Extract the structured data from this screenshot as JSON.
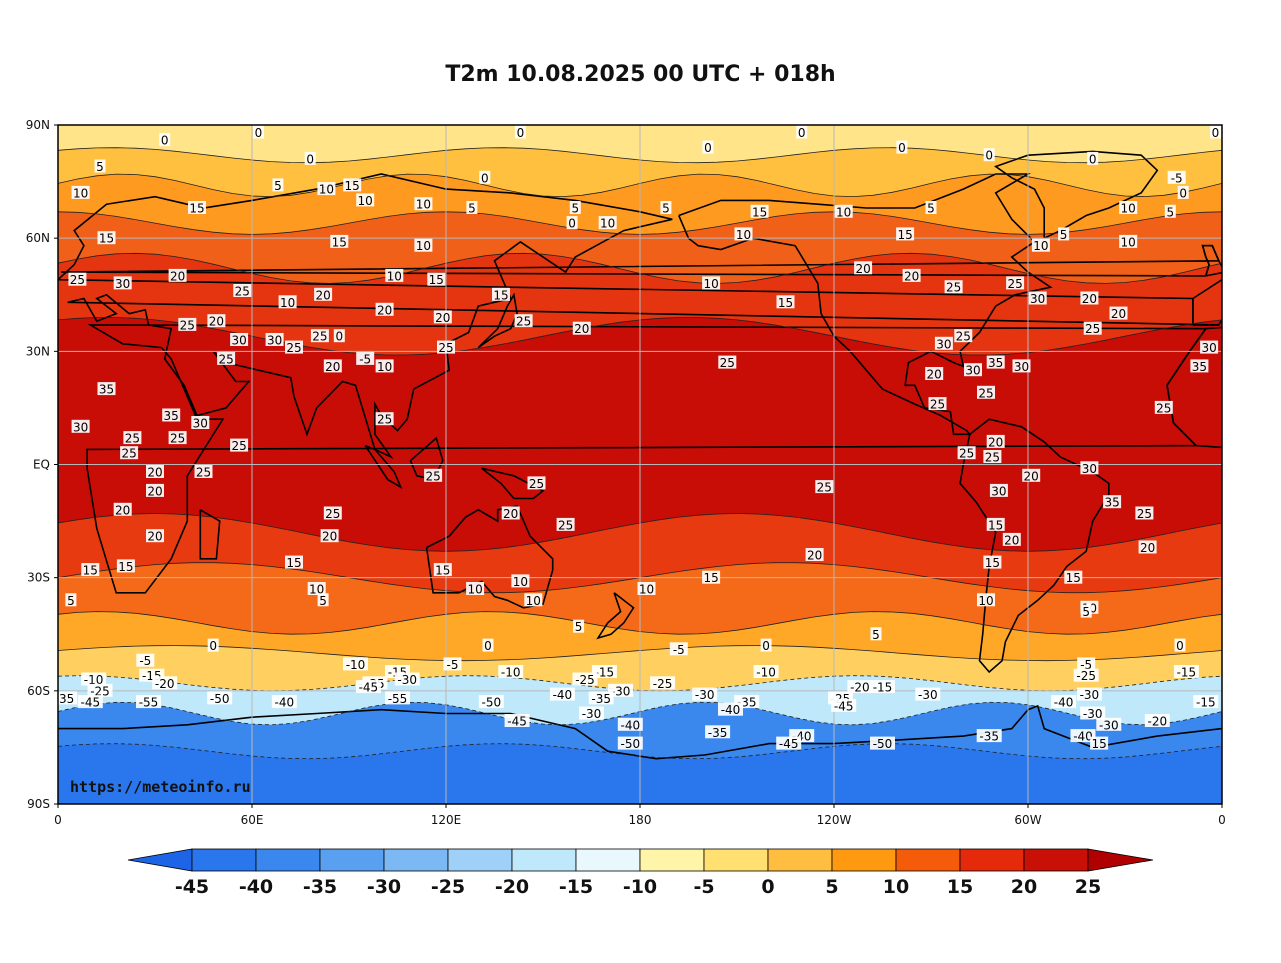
{
  "title": "T2m 10.08.2025 00 UTC + 018h",
  "watermark": "https://meteoinfo.ru",
  "axes": {
    "lat_labels": [
      "90N",
      "60N",
      "30N",
      "EQ",
      "30S",
      "60S",
      "90S"
    ],
    "lon_labels": [
      "0",
      "60E",
      "120E",
      "180",
      "120W",
      "60W",
      "0"
    ]
  },
  "colorbar": {
    "levels": [
      "-45",
      "-40",
      "-35",
      "-30",
      "-25",
      "-20",
      "-15",
      "-10",
      "-5",
      "0",
      "5",
      "10",
      "15",
      "20",
      "25"
    ],
    "colors": [
      "#1e64e6",
      "#2a76ec",
      "#3a88ee",
      "#5aa0f0",
      "#7cb8f4",
      "#9ed0f8",
      "#bfe8fa",
      "#e8f8fc",
      "#fff5a8",
      "#ffe070",
      "#ffbe40",
      "#ff9a10",
      "#f45c0a",
      "#e42a0a",
      "#c81006",
      "#b00000"
    ]
  },
  "map": {
    "band_colors": {
      "north_polar": "#ffe48a",
      "north_subpolar": "#ffc040",
      "north_high": "#ff9a20",
      "north_mid": "#f06018",
      "north_temperate": "#e43410",
      "tropics": "#c80c06",
      "south_temperate": "#e83a10",
      "south_mid": "#f46a18",
      "south_sub": "#ffa828",
      "south_polar": "#ffd060",
      "antarctic_edge": "#bfe8fa",
      "antarctic": "#3a88ee",
      "antarctic_deep": "#2a76ec"
    },
    "contour_labels": [
      {
        "text": "0",
        "lon": 33,
        "lat": 86
      },
      {
        "text": "0",
        "lon": 62,
        "lat": 88
      },
      {
        "text": "0",
        "lon": 143,
        "lat": 88
      },
      {
        "text": "0",
        "lon": 230,
        "lat": 88
      },
      {
        "text": "0",
        "lon": 358,
        "lat": 88
      },
      {
        "text": "0",
        "lon": 78,
        "lat": 81
      },
      {
        "text": "0",
        "lon": 132,
        "lat": 76
      },
      {
        "text": "0",
        "lon": 201,
        "lat": 84
      },
      {
        "text": "0",
        "lon": 261,
        "lat": 84
      },
      {
        "text": "0",
        "lon": 288,
        "lat": 82
      },
      {
        "text": "0",
        "lon": 320,
        "lat": 81
      },
      {
        "text": "0",
        "lon": 159,
        "lat": 64
      },
      {
        "text": "5",
        "lon": 13,
        "lat": 79
      },
      {
        "text": "5",
        "lon": 68,
        "lat": 74
      },
      {
        "text": "5",
        "lon": 128,
        "lat": 68
      },
      {
        "text": "5",
        "lon": 160,
        "lat": 68
      },
      {
        "text": "5",
        "lon": 188,
        "lat": 68
      },
      {
        "text": "5",
        "lon": 270,
        "lat": 68
      },
      {
        "text": "5",
        "lon": 311,
        "lat": 61
      },
      {
        "text": "5",
        "lon": 344,
        "lat": 67
      },
      {
        "text": "-5",
        "lon": 346,
        "lat": 76
      },
      {
        "text": "0",
        "lon": 348,
        "lat": 72
      },
      {
        "text": "10",
        "lon": 7,
        "lat": 72
      },
      {
        "text": "15",
        "lon": 43,
        "lat": 68
      },
      {
        "text": "15",
        "lon": 15,
        "lat": 60
      },
      {
        "text": "10",
        "lon": 83,
        "lat": 73
      },
      {
        "text": "15",
        "lon": 91,
        "lat": 74
      },
      {
        "text": "10",
        "lon": 95,
        "lat": 70
      },
      {
        "text": "10",
        "lon": 113,
        "lat": 69
      },
      {
        "text": "10",
        "lon": 170,
        "lat": 64
      },
      {
        "text": "10",
        "lon": 113,
        "lat": 58
      },
      {
        "text": "10",
        "lon": 202,
        "lat": 48
      },
      {
        "text": "15",
        "lon": 217,
        "lat": 67
      },
      {
        "text": "10",
        "lon": 212,
        "lat": 61
      },
      {
        "text": "10",
        "lon": 243,
        "lat": 67
      },
      {
        "text": "15",
        "lon": 262,
        "lat": 61
      },
      {
        "text": "10",
        "lon": 304,
        "lat": 58
      },
      {
        "text": "10",
        "lon": 331,
        "lat": 59
      },
      {
        "text": "10",
        "lon": 331,
        "lat": 68
      },
      {
        "text": "15",
        "lon": 87,
        "lat": 59
      },
      {
        "text": "15",
        "lon": 117,
        "lat": 49
      },
      {
        "text": "15",
        "lon": 137,
        "lat": 45
      },
      {
        "text": "15",
        "lon": 225,
        "lat": 43
      },
      {
        "text": "20",
        "lon": 162,
        "lat": 36
      },
      {
        "text": "20",
        "lon": 249,
        "lat": 52
      },
      {
        "text": "20",
        "lon": 264,
        "lat": 50
      },
      {
        "text": "25",
        "lon": 277,
        "lat": 47
      },
      {
        "text": "25",
        "lon": 296,
        "lat": 48
      },
      {
        "text": "30",
        "lon": 303,
        "lat": 44
      },
      {
        "text": "20",
        "lon": 319,
        "lat": 44
      },
      {
        "text": "20",
        "lon": 328,
        "lat": 40
      },
      {
        "text": "25",
        "lon": 320,
        "lat": 36
      },
      {
        "text": "25",
        "lon": 6,
        "lat": 49
      },
      {
        "text": "30",
        "lon": 20,
        "lat": 48
      },
      {
        "text": "20",
        "lon": 37,
        "lat": 50
      },
      {
        "text": "25",
        "lon": 57,
        "lat": 46
      },
      {
        "text": "10",
        "lon": 71,
        "lat": 43
      },
      {
        "text": "20",
        "lon": 82,
        "lat": 45
      },
      {
        "text": "10",
        "lon": 104,
        "lat": 50
      },
      {
        "text": "20",
        "lon": 101,
        "lat": 41
      },
      {
        "text": "20",
        "lon": 119,
        "lat": 39
      },
      {
        "text": "25",
        "lon": 40,
        "lat": 37
      },
      {
        "text": "20",
        "lon": 49,
        "lat": 38
      },
      {
        "text": "30",
        "lon": 56,
        "lat": 33
      },
      {
        "text": "30",
        "lon": 67,
        "lat": 33
      },
      {
        "text": "25",
        "lon": 52,
        "lat": 28
      },
      {
        "text": "25",
        "lon": 73,
        "lat": 31
      },
      {
        "text": "25",
        "lon": 81,
        "lat": 34
      },
      {
        "text": "0",
        "lon": 87,
        "lat": 34
      },
      {
        "text": "20",
        "lon": 85,
        "lat": 26
      },
      {
        "text": "-5",
        "lon": 95,
        "lat": 28
      },
      {
        "text": "10",
        "lon": 101,
        "lat": 26
      },
      {
        "text": "25",
        "lon": 120,
        "lat": 31
      },
      {
        "text": "25",
        "lon": 144,
        "lat": 38
      },
      {
        "text": "25",
        "lon": 207,
        "lat": 27
      },
      {
        "text": "30",
        "lon": 274,
        "lat": 32
      },
      {
        "text": "25",
        "lon": 280,
        "lat": 34
      },
      {
        "text": "20",
        "lon": 271,
        "lat": 24
      },
      {
        "text": "30",
        "lon": 283,
        "lat": 25
      },
      {
        "text": "35",
        "lon": 290,
        "lat": 27
      },
      {
        "text": "30",
        "lon": 298,
        "lat": 26
      },
      {
        "text": "25",
        "lon": 287,
        "lat": 19
      },
      {
        "text": "25",
        "lon": 272,
        "lat": 16
      },
      {
        "text": "35",
        "lon": 353,
        "lat": 26
      },
      {
        "text": "30",
        "lon": 356,
        "lat": 31
      },
      {
        "text": "25",
        "lon": 342,
        "lat": 15
      },
      {
        "text": "35",
        "lon": 15,
        "lat": 20
      },
      {
        "text": "30",
        "lon": 7,
        "lat": 10
      },
      {
        "text": "35",
        "lon": 35,
        "lat": 13
      },
      {
        "text": "30",
        "lon": 44,
        "lat": 11
      },
      {
        "text": "25",
        "lon": 37,
        "lat": 7
      },
      {
        "text": "25",
        "lon": 23,
        "lat": 7
      },
      {
        "text": "25",
        "lon": 22,
        "lat": 3
      },
      {
        "text": "25",
        "lon": 56,
        "lat": 5
      },
      {
        "text": "25",
        "lon": 101,
        "lat": 12
      },
      {
        "text": "25",
        "lon": 281,
        "lat": 3
      },
      {
        "text": "20",
        "lon": 290,
        "lat": 6
      },
      {
        "text": "25",
        "lon": 289,
        "lat": 2
      },
      {
        "text": "20",
        "lon": 301,
        "lat": -3
      },
      {
        "text": "20",
        "lon": 30,
        "lat": -2
      },
      {
        "text": "25",
        "lon": 45,
        "lat": -2
      },
      {
        "text": "25",
        "lon": 116,
        "lat": -3
      },
      {
        "text": "25",
        "lon": 148,
        "lat": -5
      },
      {
        "text": "25",
        "lon": 237,
        "lat": -6
      },
      {
        "text": "30",
        "lon": 291,
        "lat": -7
      },
      {
        "text": "30",
        "lon": 319,
        "lat": -1
      },
      {
        "text": "20",
        "lon": 30,
        "lat": -7
      },
      {
        "text": "20",
        "lon": 20,
        "lat": -12
      },
      {
        "text": "25",
        "lon": 85,
        "lat": -13
      },
      {
        "text": "20",
        "lon": 140,
        "lat": -13
      },
      {
        "text": "35",
        "lon": 326,
        "lat": -10
      },
      {
        "text": "25",
        "lon": 336,
        "lat": -13
      },
      {
        "text": "20",
        "lon": 30,
        "lat": -19
      },
      {
        "text": "20",
        "lon": 84,
        "lat": -19
      },
      {
        "text": "25",
        "lon": 157,
        "lat": -16
      },
      {
        "text": "15",
        "lon": 290,
        "lat": -16
      },
      {
        "text": "20",
        "lon": 295,
        "lat": -20
      },
      {
        "text": "20",
        "lon": 234,
        "lat": -24
      },
      {
        "text": "20",
        "lon": 337,
        "lat": -22
      },
      {
        "text": "15",
        "lon": 21,
        "lat": -27
      },
      {
        "text": "15",
        "lon": 10,
        "lat": -28
      },
      {
        "text": "15",
        "lon": 73,
        "lat": -26
      },
      {
        "text": "15",
        "lon": 119,
        "lat": -28
      },
      {
        "text": "15",
        "lon": 289,
        "lat": -26
      },
      {
        "text": "15",
        "lon": 314,
        "lat": -30
      },
      {
        "text": "15",
        "lon": 202,
        "lat": -30
      },
      {
        "text": "10",
        "lon": 143,
        "lat": -31
      },
      {
        "text": "10",
        "lon": 129,
        "lat": -33
      },
      {
        "text": "10",
        "lon": 80,
        "lat": -33
      },
      {
        "text": "10",
        "lon": 182,
        "lat": -33
      },
      {
        "text": "10",
        "lon": 287,
        "lat": -36
      },
      {
        "text": "10",
        "lon": 319,
        "lat": -38
      },
      {
        "text": "10",
        "lon": 147,
        "lat": -36
      },
      {
        "text": "5",
        "lon": 82,
        "lat": -36
      },
      {
        "text": "5",
        "lon": 4,
        "lat": -36
      },
      {
        "text": "5",
        "lon": 161,
        "lat": -43
      },
      {
        "text": "5",
        "lon": 318,
        "lat": -39
      },
      {
        "text": "5",
        "lon": 253,
        "lat": -45
      },
      {
        "text": "0",
        "lon": 48,
        "lat": -48
      },
      {
        "text": "0",
        "lon": 133,
        "lat": -48
      },
      {
        "text": "0",
        "lon": 219,
        "lat": -48
      },
      {
        "text": "0",
        "lon": 347,
        "lat": -48
      },
      {
        "text": "-5",
        "lon": 192,
        "lat": -49
      },
      {
        "text": "-5",
        "lon": 27,
        "lat": -52
      },
      {
        "text": "-5",
        "lon": 122,
        "lat": -53
      },
      {
        "text": "-5",
        "lon": 318,
        "lat": -53
      },
      {
        "text": "-10",
        "lon": 92,
        "lat": -53
      },
      {
        "text": "-10",
        "lon": 140,
        "lat": -55
      },
      {
        "text": "-10",
        "lon": 219,
        "lat": -55
      },
      {
        "text": "-10",
        "lon": 11,
        "lat": -57
      },
      {
        "text": "-15",
        "lon": 29,
        "lat": -56
      },
      {
        "text": "-15",
        "lon": 105,
        "lat": -55
      },
      {
        "text": "-15",
        "lon": 169,
        "lat": -55
      },
      {
        "text": "-15",
        "lon": 255,
        "lat": -59
      },
      {
        "text": "-15",
        "lon": 349,
        "lat": -55
      },
      {
        "text": "-15",
        "lon": 355,
        "lat": -63
      },
      {
        "text": "-20",
        "lon": 33,
        "lat": -58
      },
      {
        "text": "-20",
        "lon": 248,
        "lat": -59
      },
      {
        "text": "-25",
        "lon": 163,
        "lat": -57
      },
      {
        "text": "-25",
        "lon": 187,
        "lat": -58
      },
      {
        "text": "-25",
        "lon": 318,
        "lat": -56
      },
      {
        "text": "-25",
        "lon": 13,
        "lat": -60
      },
      {
        "text": "-25",
        "lon": 242,
        "lat": -62
      },
      {
        "text": "-30",
        "lon": 108,
        "lat": -57
      },
      {
        "text": "-30",
        "lon": 174,
        "lat": -60
      },
      {
        "text": "-30",
        "lon": 200,
        "lat": -61
      },
      {
        "text": "-30",
        "lon": 269,
        "lat": -61
      },
      {
        "text": "-30",
        "lon": 319,
        "lat": -61
      },
      {
        "text": "-30",
        "lon": 320,
        "lat": -66
      },
      {
        "text": "-30",
        "lon": 325,
        "lat": -69
      },
      {
        "text": "-30",
        "lon": 165,
        "lat": -66
      },
      {
        "text": "-35",
        "lon": 98,
        "lat": -58
      },
      {
        "text": "-35",
        "lon": 213,
        "lat": -63
      },
      {
        "text": "-35",
        "lon": 2,
        "lat": -62
      },
      {
        "text": "-40",
        "lon": 156,
        "lat": -61
      },
      {
        "text": "-40",
        "lon": 70,
        "lat": -63
      },
      {
        "text": "-40",
        "lon": 177,
        "lat": -69
      },
      {
        "text": "-40",
        "lon": 208,
        "lat": -65
      },
      {
        "text": "-40",
        "lon": 311,
        "lat": -63
      },
      {
        "text": "-40",
        "lon": 230,
        "lat": -72
      },
      {
        "text": "-40",
        "lon": 317,
        "lat": -72
      },
      {
        "text": "-45",
        "lon": 96,
        "lat": -59
      },
      {
        "text": "-45",
        "lon": 10,
        "lat": -63
      },
      {
        "text": "-45",
        "lon": 142,
        "lat": -68
      },
      {
        "text": "-45",
        "lon": 243,
        "lat": -64
      },
      {
        "text": "-45",
        "lon": 226,
        "lat": -74
      },
      {
        "text": "-50",
        "lon": 50,
        "lat": -62
      },
      {
        "text": "-50",
        "lon": 134,
        "lat": -63
      },
      {
        "text": "-50",
        "lon": 177,
        "lat": -74
      },
      {
        "text": "-50",
        "lon": 255,
        "lat": -74
      },
      {
        "text": "-55",
        "lon": 28,
        "lat": -63
      },
      {
        "text": "-55",
        "lon": 105,
        "lat": -62
      },
      {
        "text": "-35",
        "lon": 204,
        "lat": -71
      },
      {
        "text": "-35",
        "lon": 288,
        "lat": -72
      },
      {
        "text": "-35",
        "lon": 168,
        "lat": -62
      },
      {
        "text": "-20",
        "lon": 340,
        "lat": -68
      },
      {
        "text": "15",
        "lon": 322,
        "lat": -74
      }
    ]
  }
}
